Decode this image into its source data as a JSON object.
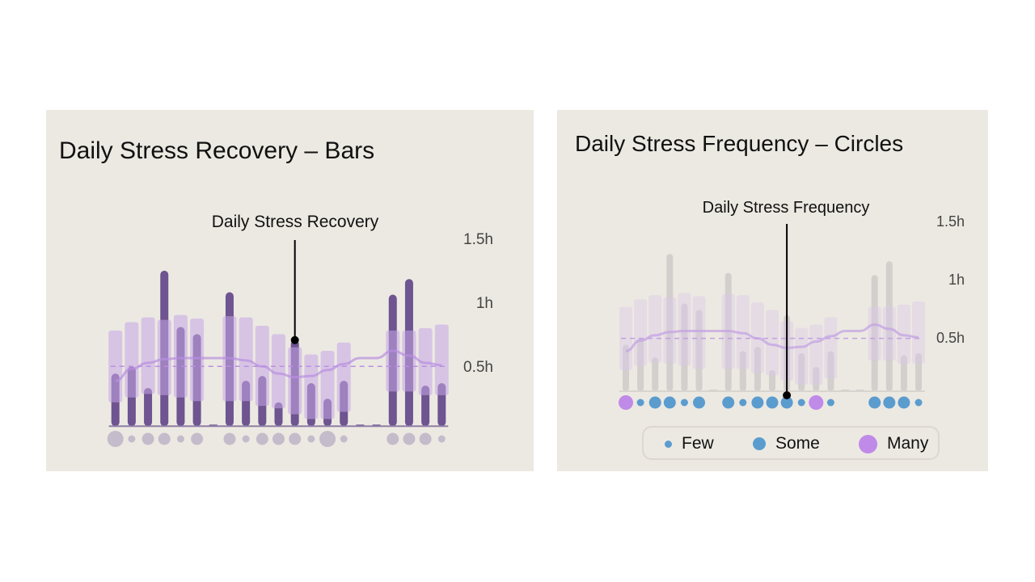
{
  "chart_data": [
    {
      "type": "bar",
      "title": "Daily Stress Recovery – Bars",
      "annotation": "Daily Stress Recovery",
      "annotated_index": 11,
      "y_ticks": [
        "1.5h",
        "1h",
        "0.5h"
      ],
      "ylim": [
        0,
        1.5
      ],
      "reference_line": 0.5,
      "grid": false,
      "series": [
        {
          "kind": "bar",
          "values": [
            0.44,
            0.5,
            0.32,
            1.3,
            0.83,
            0.77,
            0,
            1.12,
            0.38,
            0.42,
            0.2,
            0.72,
            0.36,
            0.23,
            0.38,
            0,
            0,
            1.1,
            1.23,
            0.34,
            0.36
          ]
        },
        {
          "kind": "range",
          "low": [
            0.2,
            0.24,
            0.27,
            0.26,
            0.24,
            0.21,
            null,
            0.21,
            0.21,
            0.17,
            0.15,
            0.1,
            0.06,
            0.06,
            0.12,
            null,
            null,
            0.29,
            0.29,
            0.26,
            0.26
          ],
          "high": [
            0.8,
            0.87,
            0.91,
            0.89,
            0.93,
            0.9,
            null,
            0.92,
            0.91,
            0.84,
            0.77,
            0.66,
            0.6,
            0.63,
            0.7,
            null,
            null,
            0.8,
            0.8,
            0.82,
            0.85
          ]
        },
        {
          "kind": "line",
          "values": [
            0.38,
            0.48,
            0.53,
            0.56,
            0.57,
            0.57,
            0.57,
            0.57,
            0.55,
            0.5,
            0.44,
            0.41,
            0.42,
            0.47,
            0.52,
            0.57,
            0.57,
            0.63,
            0.59,
            0.53,
            0.51
          ]
        }
      ],
      "frequency": [
        "many",
        "few",
        "some",
        "some",
        "few",
        "some",
        null,
        "some",
        "few",
        "some",
        "some",
        "some",
        "few",
        "many",
        "few",
        null,
        null,
        "some",
        "some",
        "some",
        "few"
      ],
      "colors": {
        "bar": "#6e5490",
        "range": "#c7a6e6",
        "line": "#b98fe0",
        "dots": "#c4bccb"
      }
    },
    {
      "type": "bar",
      "title": "Daily Stress Frequency – Circles",
      "annotation": "Daily Stress Frequency",
      "annotated_index": 11,
      "y_ticks": [
        "1.5h",
        "1h",
        "0.5h"
      ],
      "ylim": [
        0,
        1.5
      ],
      "reference_line": 0.5,
      "grid": false,
      "legend": {
        "position": "bottom",
        "items": [
          {
            "label": "Few",
            "key": "few"
          },
          {
            "label": "Some",
            "key": "some"
          },
          {
            "label": "Many",
            "key": "many"
          }
        ]
      },
      "colors": {
        "bar": "#d2cfcd",
        "range": "#dcc6e8",
        "line": "#c2a0e4",
        "few": "#5b9ccf",
        "some": "#5b9ccf",
        "many": "#c08ae8"
      }
    }
  ]
}
